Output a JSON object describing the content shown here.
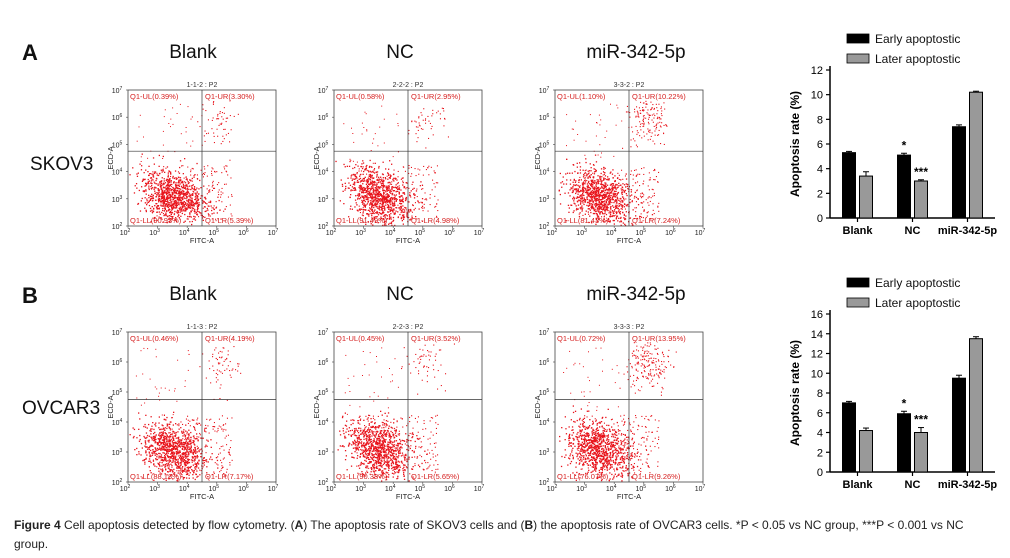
{
  "panels": [
    {
      "letter": "A",
      "cell_line": "SKOV3",
      "columns": [
        {
          "title": "Blank",
          "sample": "1-1-2 : P2",
          "ul": "Q1-UL(0.39%)",
          "ur": "Q1-UR(3.30%)",
          "ll": "Q1-LL(90.93%)",
          "lr": "Q1-LR(5.39%)",
          "upper_density": 0.4
        },
        {
          "title": "NC",
          "sample": "2-2-2 : P2",
          "ul": "Q1-UL(0.58%)",
          "ur": "Q1-UR(2.95%)",
          "ll": "Q1-LL(91.49%)",
          "lr": "Q1-LR(4.98%)",
          "upper_density": 0.35
        },
        {
          "title": "miR-342-5p",
          "sample": "3-3-2 : P2",
          "ul": "Q1-UL(1.10%)",
          "ur": "Q1-UR(10.22%)",
          "ll": "Q1-LL(81.43%)",
          "lr": "Q1-LR(7.24%)",
          "upper_density": 1.0
        }
      ]
    },
    {
      "letter": "B",
      "cell_line": "OVCAR3",
      "columns": [
        {
          "title": "Blank",
          "sample": "1-1-3 : P2",
          "ul": "Q1-UL(0.46%)",
          "ur": "Q1-UR(4.19%)",
          "ll": "Q1-LL(88.18%)",
          "lr": "Q1-LR(7.17%)",
          "upper_density": 0.45
        },
        {
          "title": "NC",
          "sample": "2-2-3 : P2",
          "ul": "Q1-UL(0.45%)",
          "ur": "Q1-UR(3.52%)",
          "ll": "Q1-LL(90.38%)",
          "lr": "Q1-LR(5.65%)",
          "upper_density": 0.38
        },
        {
          "title": "miR-342-5p",
          "sample": "3-3-3 : P2",
          "ul": "Q1-UL(0.72%)",
          "ur": "Q1-UR(13.95%)",
          "ll": "Q1-LL(76.07%)",
          "lr": "Q1-LR(9.26%)",
          "upper_density": 1.3
        }
      ]
    }
  ],
  "flow_axes": {
    "xlabel": "FITC-A",
    "ylabel": "ECD-A",
    "ticks": [
      "10",
      "10",
      "10",
      "10",
      "10",
      "10"
    ],
    "tick_exps": [
      "2",
      "3",
      "4",
      "5",
      "6",
      "7"
    ]
  },
  "colors": {
    "dots": "#e8141c",
    "label_red": "#d62020",
    "early": "#000000",
    "later": "#999999"
  },
  "chart_data": [
    {
      "type": "bar",
      "categories": [
        "Blank",
        "NC",
        "miR-342-5p"
      ],
      "series": [
        {
          "name": "Early apoptostic",
          "values": [
            5.3,
            5.1,
            7.4
          ],
          "errors": [
            0.1,
            0.15,
            0.15
          ]
        },
        {
          "name": "Later apoptostic",
          "values": [
            3.4,
            3.0,
            10.2
          ],
          "errors": [
            0.35,
            0.1,
            0.08
          ]
        }
      ],
      "significance": [
        "",
        "",
        "*",
        "***"
      ],
      "ylabel": "Apoptosis rate (%)",
      "ylim": [
        0,
        12
      ],
      "yticks": [
        "0",
        "2",
        "4",
        "6",
        "8",
        "10",
        "12"
      ]
    },
    {
      "type": "bar",
      "categories": [
        "Blank",
        "NC",
        "miR-342-5p"
      ],
      "series": [
        {
          "name": "Early apoptostic",
          "values": [
            7.0,
            5.9,
            9.5
          ],
          "errors": [
            0.15,
            0.25,
            0.3
          ]
        },
        {
          "name": "Later apoptostic",
          "values": [
            4.2,
            4.0,
            13.5
          ],
          "errors": [
            0.25,
            0.5,
            0.2
          ]
        }
      ],
      "significance": [
        "",
        "",
        "*",
        "***"
      ],
      "ylabel": "Apoptosis rate (%)",
      "ylim": [
        0,
        16
      ],
      "yticks": [
        "0",
        "2",
        "4",
        "6",
        "8",
        "10",
        "12",
        "14",
        "16"
      ]
    }
  ],
  "caption": {
    "label": "Figure 4",
    "text1": " Cell apoptosis detected by flow cytometry. (",
    "a": "A",
    "text2": ") The apoptosis rate of SKOV3 cells and (",
    "b": "B",
    "text3": ") the apoptosis rate of OVCAR3 cells. *P < 0.05 vs NC group, ***P < 0.001 vs NC group."
  }
}
